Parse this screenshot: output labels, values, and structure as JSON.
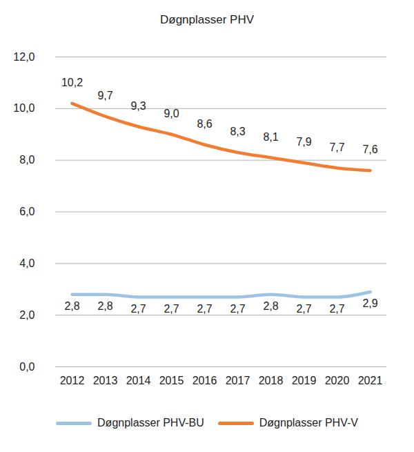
{
  "chart_data": {
    "type": "line",
    "title": "Døgnplasser PHV",
    "categories": [
      "2012",
      "2013",
      "2014",
      "2015",
      "2016",
      "2017",
      "2018",
      "2019",
      "2020",
      "2021"
    ],
    "series": [
      {
        "name": "Døgnplasser PHV-BU",
        "color": "#9cc2e5",
        "values": [
          2.8,
          2.8,
          2.7,
          2.7,
          2.7,
          2.7,
          2.8,
          2.7,
          2.7,
          2.9
        ],
        "value_labels": [
          "2,8",
          "2,8",
          "2,7",
          "2,7",
          "2,7",
          "2,7",
          "2,8",
          "2,7",
          "2,7",
          "2,9"
        ]
      },
      {
        "name": "Døgnplasser PHV-V",
        "color": "#f27c2f",
        "values": [
          10.2,
          9.7,
          9.3,
          9.0,
          8.6,
          8.3,
          8.1,
          7.9,
          7.7,
          7.6
        ],
        "value_labels": [
          "10,2",
          "9,7",
          "9,3",
          "9,0",
          "8,6",
          "8,3",
          "8,1",
          "7,9",
          "7,7",
          "7,6"
        ]
      }
    ],
    "ylim": [
      0,
      12
    ],
    "yticks": [
      {
        "value": 0,
        "label": "0,0"
      },
      {
        "value": 2,
        "label": "2,0"
      },
      {
        "value": 4,
        "label": "4,0"
      },
      {
        "value": 6,
        "label": "6,0"
      },
      {
        "value": 8,
        "label": "8,0"
      },
      {
        "value": 10,
        "label": "10,0"
      },
      {
        "value": 12,
        "label": "12,0"
      }
    ],
    "grid": true,
    "legend": "bottom",
    "data_labels": true
  }
}
